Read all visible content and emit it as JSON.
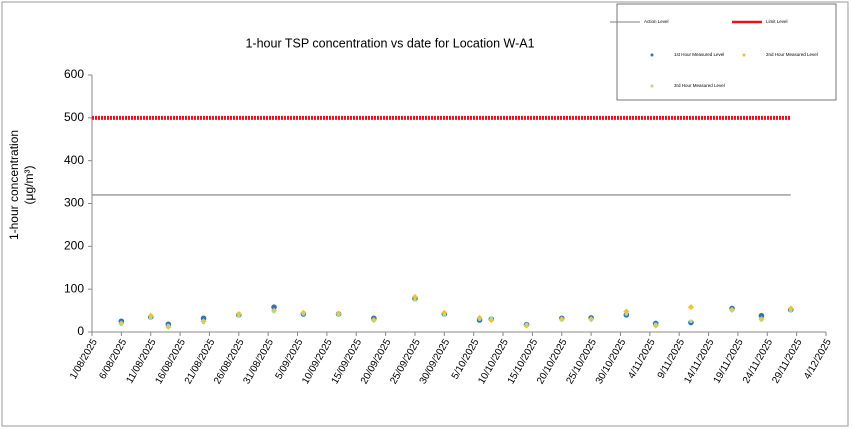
{
  "chart_data": {
    "type": "scatter",
    "title": "1-hour TSP concentration vs date for Location W-A1",
    "y_label": [
      "1-hour concentration",
      "(μg/m³)"
    ],
    "x": [
      "6/08/2025",
      "11/08/2025",
      "14/08/2025",
      "20/08/2025",
      "26/08/2025",
      "1/09/2025",
      "6/09/2025",
      "12/09/2025",
      "18/09/2025",
      "25/09/2025",
      "30/09/2025",
      "6/10/2025",
      "8/10/2025",
      "14/10/2025",
      "20/10/2025",
      "25/10/2025",
      "31/10/2025",
      "5/11/2025",
      "11/11/2025",
      "18/11/2025",
      "23/11/2025",
      "28/11/2025"
    ],
    "series": [
      {
        "name": "Action Level",
        "type": "line",
        "color": "#7f7f7f",
        "x": [
          "1/08/2025",
          "28/11/2025"
        ],
        "values": [
          320,
          320
        ]
      },
      {
        "name": "Limit Level",
        "type": "line",
        "color": "#e8141c",
        "x": [
          "1/08/2025",
          "28/11/2025"
        ],
        "values": [
          500,
          500
        ]
      },
      {
        "name": "1st Hour Measured Level",
        "color": "#2e75b6",
        "values": [
          25,
          35,
          18,
          32,
          40,
          58,
          42,
          42,
          32,
          78,
          42,
          28,
          30,
          17,
          32,
          33,
          40,
          20,
          22,
          55,
          38,
          52
        ]
      },
      {
        "name": "2nd Hour Measured Level",
        "color": "#f2c12e",
        "values": [
          20,
          38,
          12,
          25,
          42,
          50,
          45,
          43,
          28,
          82,
          45,
          33,
          28,
          15,
          30,
          30,
          48,
          15,
          58,
          52,
          30,
          55
        ]
      },
      {
        "name": "3rd Hour Measured Level",
        "color": "#b5d68f",
        "values": [
          18,
          33,
          15,
          22,
          38,
          48,
          42,
          40,
          26,
          75,
          40,
          30,
          32,
          18,
          28,
          28,
          42,
          18,
          25,
          50,
          28,
          50
        ]
      }
    ],
    "xlim": [
      "1/08/2025",
      "4/12/2025"
    ],
    "xticks": [
      "1/08/2025",
      "6/08/2025",
      "11/08/2025",
      "16/08/2025",
      "21/08/2025",
      "26/08/2025",
      "31/08/2025",
      "5/09/2025",
      "10/09/2025",
      "15/09/2025",
      "20/09/2025",
      "25/09/2025",
      "30/09/2025",
      "5/10/2025",
      "10/10/2025",
      "15/10/2025",
      "20/10/2025",
      "25/10/2025",
      "30/10/2025",
      "4/11/2025",
      "9/11/2025",
      "14/11/2025",
      "19/11/2025",
      "24/11/2025",
      "29/11/2025",
      "4/12/2025"
    ],
    "ylim": [
      0,
      600
    ],
    "yticks": [
      0,
      100,
      200,
      300,
      400,
      500,
      600
    ]
  }
}
